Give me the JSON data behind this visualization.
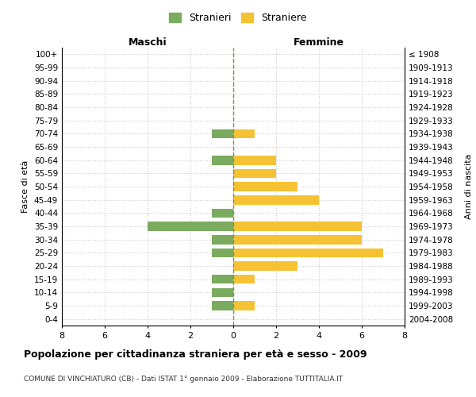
{
  "age_groups": [
    "100+",
    "95-99",
    "90-94",
    "85-89",
    "80-84",
    "75-79",
    "70-74",
    "65-69",
    "60-64",
    "55-59",
    "50-54",
    "45-49",
    "40-44",
    "35-39",
    "30-34",
    "25-29",
    "20-24",
    "15-19",
    "10-14",
    "5-9",
    "0-4"
  ],
  "birth_years": [
    "≤ 1908",
    "1909-1913",
    "1914-1918",
    "1919-1923",
    "1924-1928",
    "1929-1933",
    "1934-1938",
    "1939-1943",
    "1944-1948",
    "1949-1953",
    "1954-1958",
    "1959-1963",
    "1964-1968",
    "1969-1973",
    "1974-1978",
    "1979-1983",
    "1984-1988",
    "1989-1993",
    "1994-1998",
    "1999-2003",
    "2004-2008"
  ],
  "maschi": [
    0,
    0,
    0,
    0,
    0,
    0,
    1,
    0,
    1,
    0,
    0,
    0,
    1,
    4,
    1,
    1,
    0,
    1,
    1,
    1,
    0
  ],
  "femmine": [
    0,
    0,
    0,
    0,
    0,
    0,
    1,
    0,
    2,
    2,
    3,
    4,
    0,
    6,
    6,
    7,
    3,
    1,
    0,
    1,
    0
  ],
  "maschi_color": "#7aab5e",
  "femmine_color": "#f5c233",
  "title": "Popolazione per cittadinanza straniera per età e sesso - 2009",
  "subtitle": "COMUNE DI VINCHIATURO (CB) - Dati ISTAT 1° gennaio 2009 - Elaborazione TUTTITALIA.IT",
  "ylabel_left": "Fasce di età",
  "ylabel_right": "Anni di nascita",
  "xlabel_left": "Maschi",
  "xlabel_right": "Femmine",
  "legend_stranieri": "Stranieri",
  "legend_straniere": "Straniere",
  "xlim": 8,
  "background_color": "#ffffff",
  "grid_color": "#cccccc",
  "center_line_color": "#888866"
}
